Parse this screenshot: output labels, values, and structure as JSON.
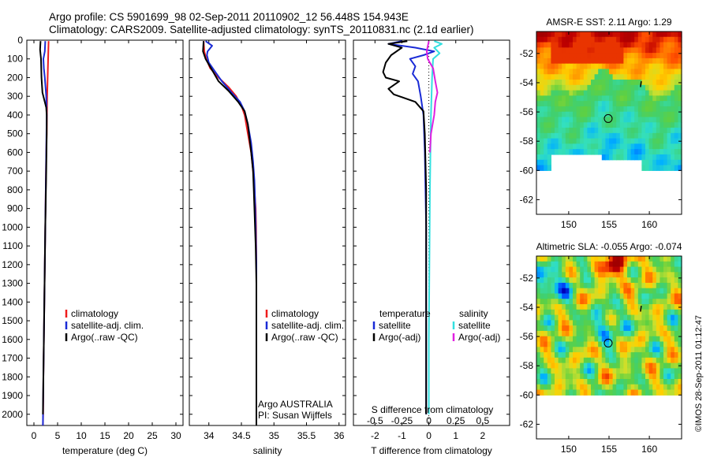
{
  "header": {
    "line1": "Argo profile: CS 5901699_98 02-Sep-2011 20110902_12 56.448S 154.943E",
    "line2": "Climatology: CARS2009. Satellite-adjusted climatology: synTS_20110831.nc (2.1d earlier)"
  },
  "colors": {
    "climatology": "#ee1c1c",
    "satellite": "#1a2bd6",
    "argo": "#000000",
    "salinity_satellite": "#33e0e0",
    "salinity_argo": "#e020e0"
  },
  "depth_axis": {
    "ticks": [
      "0",
      "100",
      "200",
      "300",
      "400",
      "500",
      "600",
      "700",
      "800",
      "900",
      "1000",
      "1100",
      "1200",
      "1300",
      "1400",
      "1500",
      "1600",
      "1700",
      "1800",
      "1900",
      "2000"
    ],
    "range": [
      0,
      2060
    ]
  },
  "chart_data": [
    {
      "type": "line",
      "id": "temperature",
      "xlabel": "temperature (deg C)",
      "xlim": [
        -1.5,
        31.5
      ],
      "xticks": [
        "0",
        "5",
        "10",
        "15",
        "20",
        "25",
        "30"
      ],
      "legend": [
        "climatology",
        "satellite-adj. clim.",
        "Argo(..raw -QC)"
      ],
      "series": [
        {
          "name": "climatology",
          "color_key": "climatology",
          "points": [
            [
              3.1,
              5
            ],
            [
              3.0,
              100
            ],
            [
              2.9,
              200
            ],
            [
              2.8,
              300
            ],
            [
              2.75,
              400
            ],
            [
              2.7,
              500
            ],
            [
              2.6,
              600
            ],
            [
              2.5,
              800
            ],
            [
              2.4,
              1000
            ],
            [
              2.3,
              1200
            ],
            [
              2.2,
              1400
            ],
            [
              2.1,
              1600
            ],
            [
              2.0,
              1800
            ],
            [
              1.95,
              2000
            ],
            [
              1.9,
              2060
            ]
          ]
        },
        {
          "name": "satellite-adj. clim.",
          "color_key": "satellite",
          "points": [
            [
              2.4,
              5
            ],
            [
              2.3,
              60
            ],
            [
              2.0,
              100
            ],
            [
              2.1,
              150
            ],
            [
              2.3,
              200
            ],
            [
              2.6,
              300
            ],
            [
              2.7,
              400
            ],
            [
              2.65,
              500
            ],
            [
              2.55,
              700
            ],
            [
              2.4,
              1000
            ],
            [
              2.25,
              1300
            ],
            [
              2.1,
              1600
            ],
            [
              2.0,
              1800
            ],
            [
              1.9,
              2060
            ]
          ]
        },
        {
          "name": "Argo(..raw -QC)",
          "color_key": "argo",
          "points": [
            [
              1.4,
              5
            ],
            [
              1.3,
              50
            ],
            [
              1.5,
              100
            ],
            [
              1.6,
              200
            ],
            [
              1.8,
              280
            ],
            [
              2.2,
              320
            ],
            [
              2.6,
              360
            ],
            [
              2.7,
              400
            ],
            [
              2.7,
              500
            ],
            [
              2.6,
              700
            ],
            [
              2.4,
              1000
            ],
            [
              2.25,
              1300
            ],
            [
              2.1,
              1600
            ],
            [
              1.95,
              1900
            ],
            [
              1.9,
              2000
            ]
          ]
        }
      ]
    },
    {
      "type": "line",
      "id": "salinity",
      "xlabel": "salinity",
      "xlim": [
        33.7,
        36.1
      ],
      "xticks": [
        "34",
        "34.5",
        "35",
        "35.5",
        "36"
      ],
      "legend": [
        "climatology",
        "satellite-adj. clim.",
        "Argo(..raw -QC)"
      ],
      "annotation": [
        "Argo AUSTRALIA",
        "PI: Susan Wijffels"
      ],
      "series": [
        {
          "name": "climatology",
          "color_key": "climatology",
          "points": [
            [
              33.92,
              5
            ],
            [
              33.93,
              60
            ],
            [
              33.96,
              100
            ],
            [
              34.02,
              150
            ],
            [
              34.15,
              200
            ],
            [
              34.3,
              250
            ],
            [
              34.42,
              300
            ],
            [
              34.5,
              350
            ],
            [
              34.55,
              400
            ],
            [
              34.6,
              500
            ],
            [
              34.65,
              600
            ],
            [
              34.68,
              700
            ],
            [
              34.7,
              800
            ],
            [
              34.72,
              900
            ],
            [
              34.725,
              1000
            ],
            [
              34.73,
              1200
            ],
            [
              34.73,
              1500
            ],
            [
              34.73,
              2060
            ]
          ]
        },
        {
          "name": "satellite-adj. clim.",
          "color_key": "satellite",
          "points": [
            [
              33.95,
              5
            ],
            [
              34.05,
              30
            ],
            [
              33.98,
              60
            ],
            [
              33.97,
              80
            ],
            [
              34.0,
              120
            ],
            [
              34.1,
              170
            ],
            [
              34.2,
              220
            ],
            [
              34.35,
              280
            ],
            [
              34.48,
              330
            ],
            [
              34.55,
              380
            ],
            [
              34.6,
              450
            ],
            [
              34.65,
              550
            ],
            [
              34.68,
              650
            ],
            [
              34.7,
              750
            ],
            [
              34.71,
              850
            ],
            [
              34.72,
              1000
            ],
            [
              34.73,
              1200
            ],
            [
              34.73,
              1500
            ],
            [
              34.73,
              2000
            ]
          ]
        },
        {
          "name": "Argo(..raw -QC)",
          "color_key": "argo",
          "points": [
            [
              33.92,
              5
            ],
            [
              33.91,
              60
            ],
            [
              33.95,
              100
            ],
            [
              34.05,
              160
            ],
            [
              34.15,
              220
            ],
            [
              34.3,
              270
            ],
            [
              34.45,
              330
            ],
            [
              34.55,
              380
            ],
            [
              34.6,
              450
            ],
            [
              34.65,
              600
            ],
            [
              34.68,
              700
            ],
            [
              34.69,
              800
            ],
            [
              34.7,
              900
            ],
            [
              34.72,
              1100
            ],
            [
              34.73,
              1300
            ],
            [
              34.73,
              1500
            ],
            [
              34.73,
              2060
            ]
          ]
        }
      ]
    },
    {
      "type": "line",
      "id": "difference",
      "xlabel": "T difference from climatology",
      "xlabel_top": "S difference from climatology",
      "xlim": [
        -2.8,
        3.0
      ],
      "xticks": [
        "-2",
        "-1",
        "0",
        "1",
        "2"
      ],
      "xticks_top": [
        "-0.5",
        "-0.25",
        "0",
        "0.25",
        "0.5"
      ],
      "xlim_top": [
        -0.7,
        0.75
      ],
      "legend_left": [
        "temperature",
        "satellite",
        "Argo(-adj)"
      ],
      "legend_right": [
        "salinity",
        "satellite",
        "Argo(-adj)"
      ],
      "series": [
        {
          "name": "satellite",
          "group": "temperature",
          "color_key": "satellite",
          "points": [
            [
              -1.0,
              5
            ],
            [
              -1.5,
              20
            ],
            [
              -0.5,
              40
            ],
            [
              0.2,
              60
            ],
            [
              -0.2,
              80
            ],
            [
              -0.7,
              100
            ],
            [
              -0.5,
              140
            ],
            [
              -0.6,
              180
            ],
            [
              -0.4,
              220
            ],
            [
              -0.3,
              300
            ],
            [
              -0.2,
              400
            ],
            [
              -0.15,
              600
            ],
            [
              -0.1,
              1000
            ],
            [
              -0.1,
              1500
            ],
            [
              -0.1,
              2000
            ]
          ]
        },
        {
          "name": "Argo(-adj)",
          "group": "temperature",
          "color_key": "argo",
          "points": [
            [
              -0.8,
              5
            ],
            [
              -1.5,
              20
            ],
            [
              -1.0,
              40
            ],
            [
              -1.4,
              80
            ],
            [
              -1.6,
              120
            ],
            [
              -1.7,
              170
            ],
            [
              -1.6,
              200
            ],
            [
              -1.1,
              220
            ],
            [
              -1.5,
              260
            ],
            [
              -1.3,
              290
            ],
            [
              -0.5,
              330
            ],
            [
              -0.2,
              380
            ],
            [
              -0.15,
              500
            ],
            [
              -0.1,
              800
            ],
            [
              -0.1,
              1200
            ],
            [
              -0.1,
              1600
            ],
            [
              -0.1,
              2000
            ]
          ]
        },
        {
          "name": "satellite",
          "group": "salinity",
          "color_key": "salinity_satellite",
          "points": [
            [
              0.05,
              5
            ],
            [
              0.12,
              20
            ],
            [
              0.05,
              40
            ],
            [
              0.1,
              70
            ],
            [
              0.04,
              100
            ],
            [
              0.03,
              200
            ],
            [
              0.02,
              400
            ],
            [
              0.01,
              800
            ],
            [
              0.005,
              1200
            ],
            [
              0.0,
              1600
            ],
            [
              0.0,
              2000
            ]
          ]
        },
        {
          "name": "Argo(-adj)",
          "group": "salinity",
          "color_key": "salinity_argo",
          "points": [
            [
              0.0,
              5
            ],
            [
              -0.02,
              60
            ],
            [
              -0.01,
              100
            ],
            [
              0.04,
              150
            ],
            [
              0.06,
              220
            ],
            [
              0.08,
              280
            ],
            [
              0.06,
              330
            ],
            [
              0.05,
              400
            ],
            [
              0.02,
              500
            ],
            [
              0.01,
              600
            ]
          ]
        }
      ]
    },
    {
      "type": "heatmap",
      "id": "sst_map",
      "title": "AMSR-E SST: 2.11 Argo: 1.29",
      "xlim": [
        146,
        164
      ],
      "ylim": [
        -63,
        -50.5
      ],
      "xticks": [
        "150",
        "155",
        "160"
      ],
      "yticks": [
        "-52",
        "-54",
        "-56",
        "-58",
        "-60",
        "-62"
      ],
      "argo_position": [
        154.9,
        -56.45
      ]
    },
    {
      "type": "heatmap",
      "id": "sla_map",
      "title": "Altimetric SLA: -0.055 Argo: -0.074",
      "xlim": [
        146,
        164
      ],
      "ylim": [
        -63,
        -50.5
      ],
      "xticks": [
        "150",
        "155",
        "160"
      ],
      "yticks": [
        "-52",
        "-54",
        "-56",
        "-58",
        "-60",
        "-62"
      ],
      "argo_position": [
        154.9,
        -56.45
      ]
    }
  ],
  "footer": {
    "stamp": "©IMOS 28-Sep-2011 01:12:47"
  }
}
